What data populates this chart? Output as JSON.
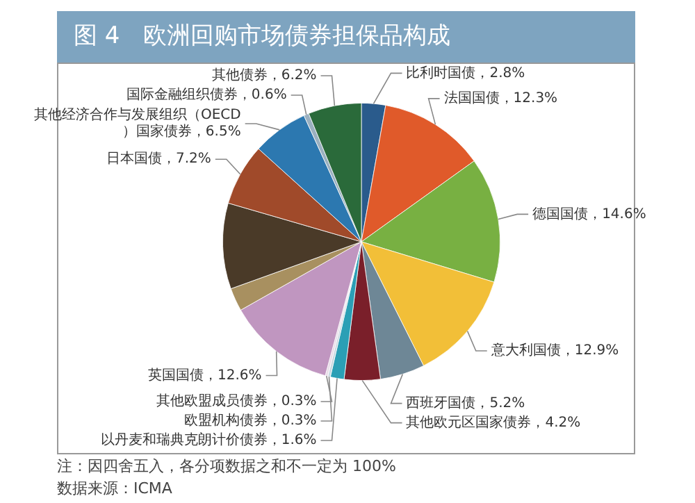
{
  "chart_data": {
    "type": "pie",
    "title": "图 4　欧洲回购市场债券担保品构成",
    "categories": [
      "比利时国债",
      "法国国债",
      "德国国债",
      "意大利国债",
      "西班牙国债",
      "其他欧元区国家债券",
      "以丹麦和瑞典克朗计价债券",
      "欧盟机构债券",
      "其他欧盟成员债券",
      "英国国债",
      null,
      null,
      "日本国债",
      "其他经济合作与发展组织（OECD）国家债券",
      "国际金融组织债券",
      "其他债券"
    ],
    "values": [
      2.8,
      12.3,
      14.6,
      12.9,
      5.2,
      4.2,
      1.6,
      0.3,
      0.3,
      12.6,
      2.7,
      10.0,
      7.2,
      6.5,
      0.6,
      6.2
    ],
    "value_labels": [
      "2.8%",
      "12.3%",
      "14.6%",
      "12.9%",
      "5.2%",
      "4.2%",
      "1.6%",
      "0.3%",
      "0.3%",
      "12.6%",
      null,
      null,
      "7.2%",
      "6.5%",
      "0.6%",
      "6.2%"
    ],
    "colors": [
      "#2a5b8c",
      "#e05a2a",
      "#78b042",
      "#f2bf38",
      "#6e8796",
      "#7a1f2a",
      "#2b9fb5",
      "#c8d8e0",
      "#e8dde8",
      "#c096c0",
      "#a89060",
      "#4a3a28",
      "#a04a2a",
      "#2c78b0",
      "#9ab0c0",
      "#2a6a3a"
    ],
    "legend": false,
    "annotations": [
      "注：因四舍五入，各分项数据之和不一定为 100%",
      "数据来源：ICMA"
    ]
  }
}
